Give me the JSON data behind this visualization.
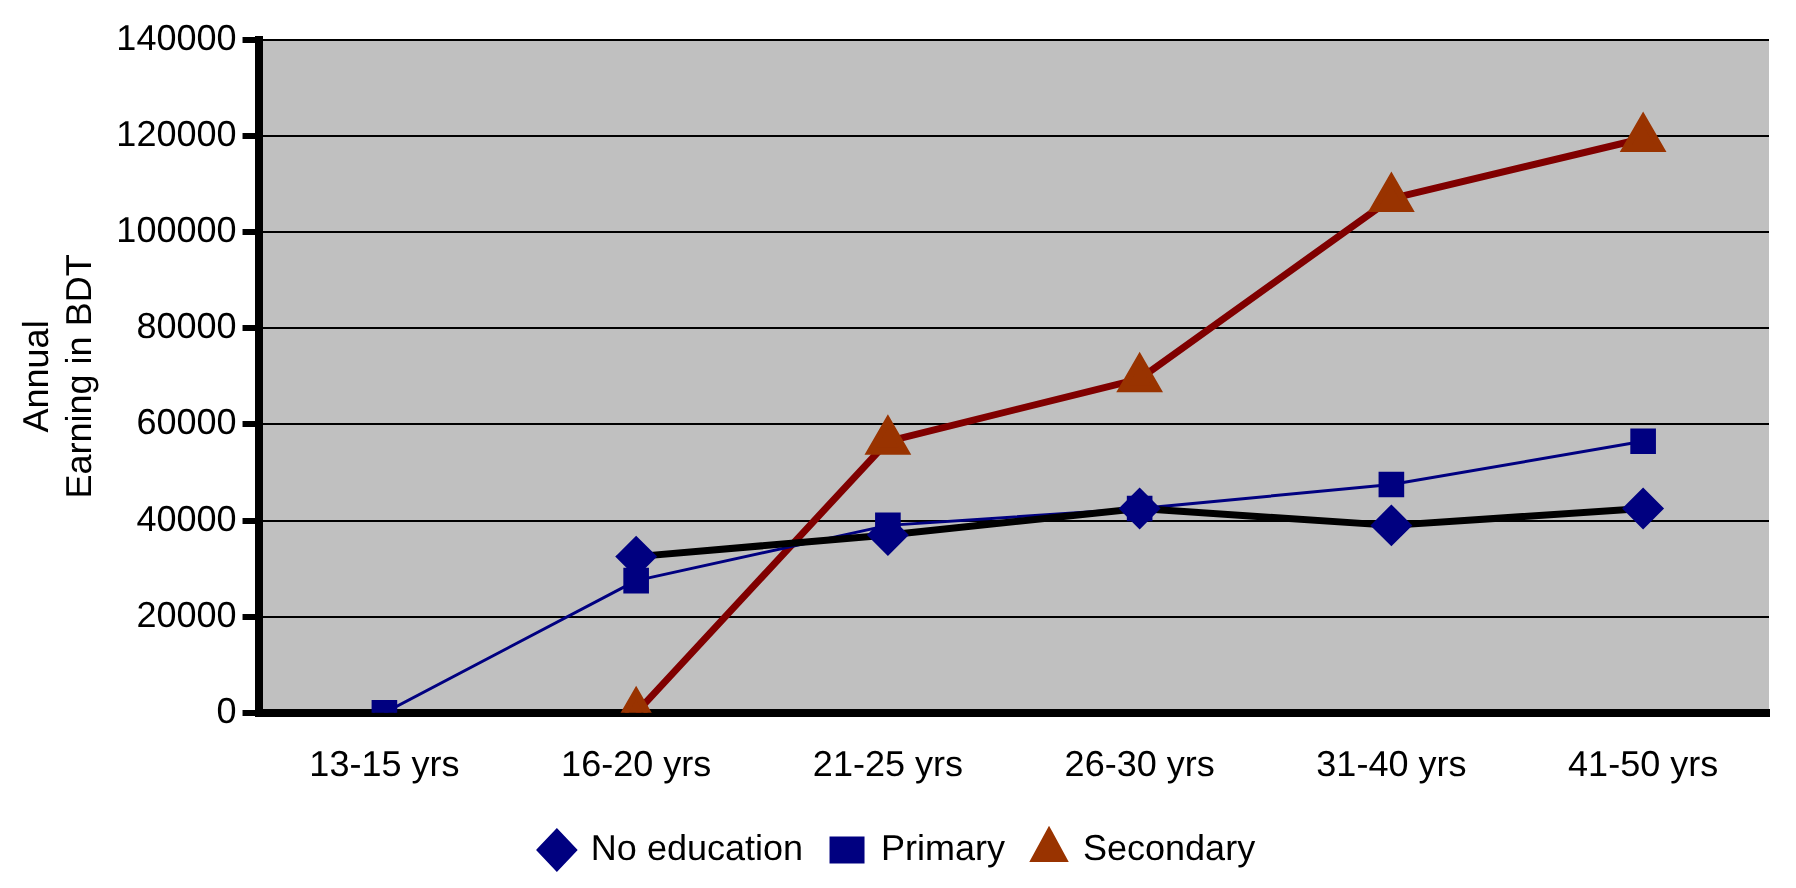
{
  "chart_data": {
    "type": "line",
    "ylabel": "Annual\nEarning in BDT",
    "categories": [
      "13-15 yrs",
      "16-20 yrs",
      "21-25 yrs",
      "26-30 yrs",
      "31-40 yrs",
      "41-50 yrs"
    ],
    "series": [
      {
        "name": "No education",
        "color": "#000000",
        "marker": "diamond",
        "values": [
          null,
          32500,
          37000,
          42500,
          39000,
          42500
        ]
      },
      {
        "name": "Primary",
        "color": "#000080",
        "marker": "square",
        "values": [
          0,
          27500,
          39000,
          42500,
          47500,
          56500
        ]
      },
      {
        "name": "Secondary",
        "color": "#800000",
        "marker": "triangle",
        "values": [
          null,
          0,
          56500,
          69500,
          107000,
          119500
        ]
      }
    ],
    "ylim": [
      0,
      140000
    ],
    "yticks": [
      0,
      20000,
      40000,
      60000,
      80000,
      100000,
      120000,
      140000
    ],
    "grid": "y",
    "legend": "bottom",
    "line_style": "solid"
  }
}
